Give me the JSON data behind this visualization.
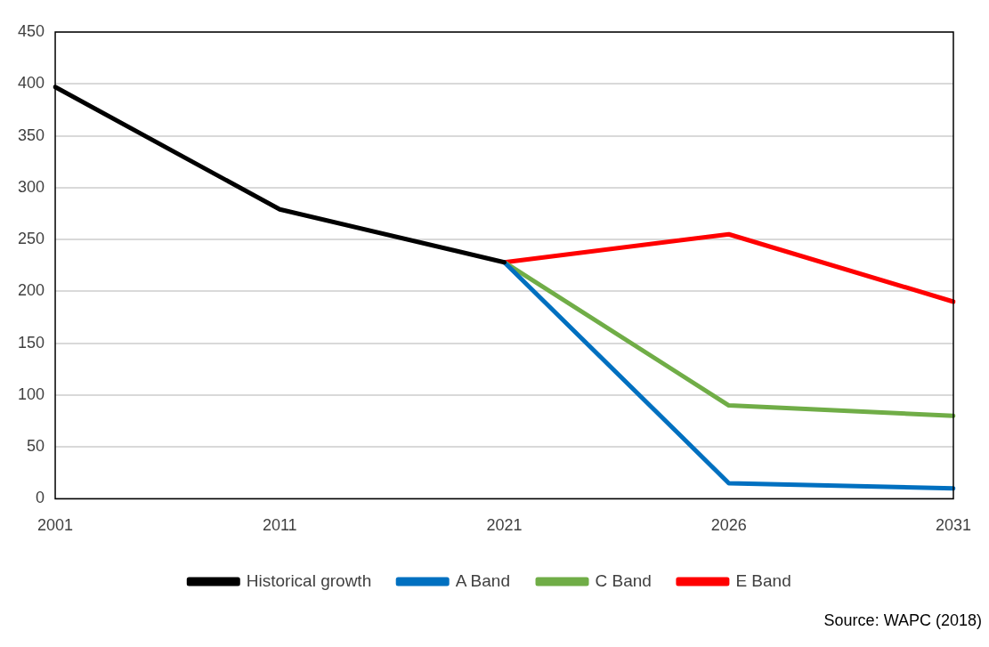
{
  "chart_data": {
    "type": "line",
    "categories": [
      "2001",
      "2011",
      "2021",
      "2026",
      "2031"
    ],
    "series": [
      {
        "name": "Historical growth",
        "color": "#000000",
        "values": [
          397,
          279,
          228,
          null,
          null
        ]
      },
      {
        "name": "A Band",
        "color": "#0070c0",
        "values": [
          null,
          null,
          228,
          15,
          10
        ]
      },
      {
        "name": "C Band",
        "color": "#70ad47",
        "values": [
          null,
          null,
          228,
          90,
          80
        ]
      },
      {
        "name": "E Band",
        "color": "#ff0000",
        "values": [
          null,
          null,
          228,
          255,
          190
        ]
      }
    ],
    "ylim": [
      0,
      450
    ],
    "yticks": [
      0,
      50,
      100,
      150,
      200,
      250,
      300,
      350,
      400,
      450
    ],
    "grid": "y",
    "legend": "bottom",
    "marker": "none",
    "line_style": "solid",
    "annotations": [
      "Source: WAPC (2018)"
    ]
  }
}
